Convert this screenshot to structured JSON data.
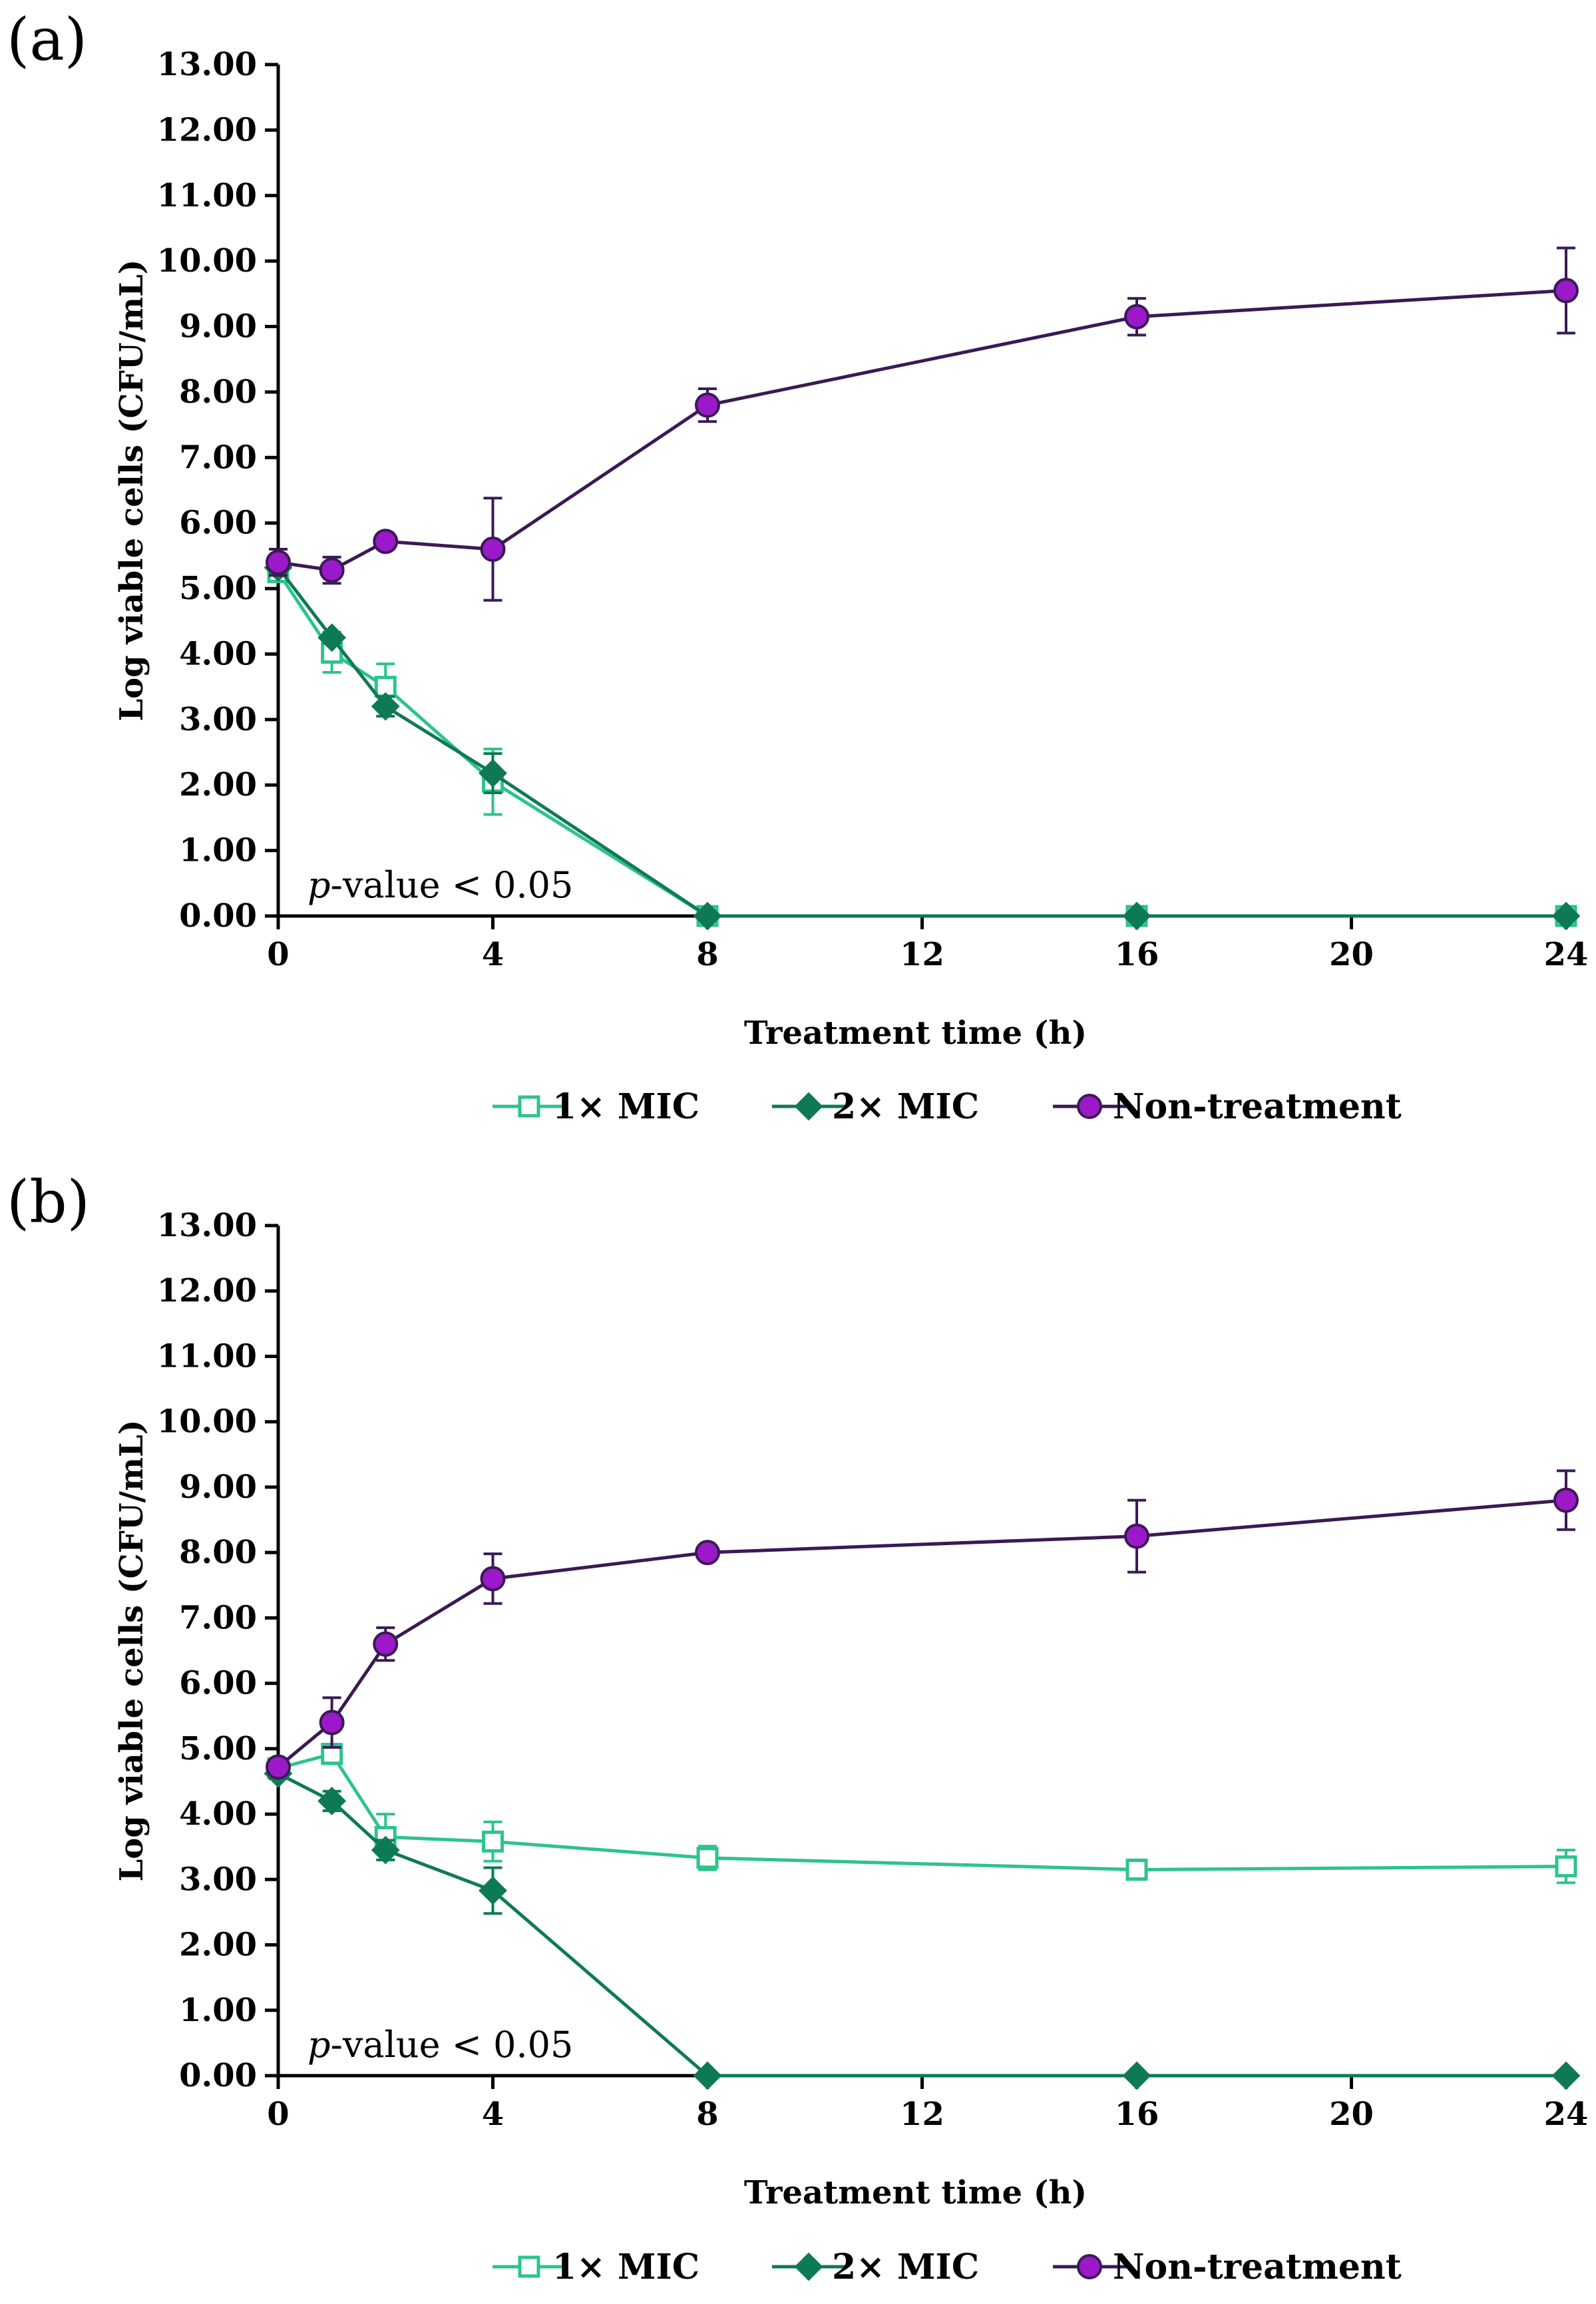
{
  "chart_data": [
    {
      "type": "line",
      "panel_label": "(a)",
      "xlabel": "Treatment time (h)",
      "ylabel": "Log viable cells (CFU/mL)",
      "xlim": [
        0,
        24
      ],
      "ylim": [
        0,
        13
      ],
      "xticks": [
        "0",
        "4",
        "8",
        "12",
        "16",
        "20",
        "24"
      ],
      "yticks": [
        "0.00",
        "1.00",
        "2.00",
        "3.00",
        "4.00",
        "5.00",
        "6.00",
        "7.00",
        "8.00",
        "9.00",
        "10.00",
        "11.00",
        "12.00",
        "13.00"
      ],
      "annotation": {
        "italic": "p",
        "text": "-value < 0.05"
      },
      "series": [
        {
          "name": "1× MIC",
          "marker": "square-open",
          "color": "#2dc48a",
          "x": [
            0,
            1,
            2,
            4,
            8,
            16,
            24
          ],
          "values": [
            5.25,
            4.02,
            3.5,
            2.05,
            0,
            0,
            0
          ],
          "errors": [
            0.08,
            0.3,
            0.35,
            0.5,
            0,
            0,
            0
          ]
        },
        {
          "name": "2× MIC",
          "marker": "diamond",
          "color": "#0e7a55",
          "x": [
            0,
            1,
            2,
            4,
            8,
            16,
            24
          ],
          "values": [
            5.32,
            4.25,
            3.2,
            2.18,
            0,
            0,
            0
          ],
          "errors": [
            0.08,
            0.08,
            0.15,
            0.3,
            0,
            0,
            0
          ]
        },
        {
          "name": "Non-treatment",
          "marker": "circle",
          "color": "#9b19c8",
          "x": [
            0,
            1,
            2,
            4,
            8,
            16,
            24
          ],
          "values": [
            5.4,
            5.28,
            5.72,
            5.6,
            7.8,
            9.15,
            9.55
          ],
          "errors": [
            0.2,
            0.2,
            0.08,
            0.78,
            0.25,
            0.28,
            0.65
          ]
        }
      ]
    },
    {
      "type": "line",
      "panel_label": "(b)",
      "xlabel": "Treatment time (h)",
      "ylabel": "Log viable cells (CFU/mL)",
      "xlim": [
        0,
        24
      ],
      "ylim": [
        0,
        13
      ],
      "xticks": [
        "0",
        "4",
        "8",
        "12",
        "16",
        "20",
        "24"
      ],
      "yticks": [
        "0.00",
        "1.00",
        "2.00",
        "3.00",
        "4.00",
        "5.00",
        "6.00",
        "7.00",
        "8.00",
        "9.00",
        "10.00",
        "11.00",
        "12.00",
        "13.00"
      ],
      "annotation": {
        "italic": "p",
        "text": "-value < 0.05"
      },
      "series": [
        {
          "name": "1× MIC",
          "marker": "square-open",
          "color": "#2dc48a",
          "x": [
            0,
            1,
            2,
            4,
            8,
            16,
            24
          ],
          "values": [
            4.7,
            4.92,
            3.65,
            3.58,
            3.33,
            3.15,
            3.2
          ],
          "errors": [
            0.08,
            0.15,
            0.35,
            0.3,
            0.18,
            0.15,
            0.25
          ]
        },
        {
          "name": "2× MIC",
          "marker": "diamond",
          "color": "#0e7a55",
          "x": [
            0,
            1,
            2,
            4,
            8,
            16,
            24
          ],
          "values": [
            4.62,
            4.2,
            3.45,
            2.83,
            0,
            0,
            0
          ],
          "errors": [
            0.08,
            0.15,
            0.15,
            0.35,
            0,
            0,
            0
          ]
        },
        {
          "name": "Non-treatment",
          "marker": "circle",
          "color": "#9b19c8",
          "x": [
            0,
            1,
            2,
            4,
            8,
            16,
            24
          ],
          "values": [
            4.72,
            5.4,
            6.6,
            7.6,
            8.0,
            8.25,
            8.8
          ],
          "errors": [
            0.08,
            0.38,
            0.25,
            0.38,
            0.08,
            0.55,
            0.45
          ]
        }
      ]
    }
  ],
  "colors": {
    "axis": "#000000",
    "trace_line": "#3a1a55"
  }
}
